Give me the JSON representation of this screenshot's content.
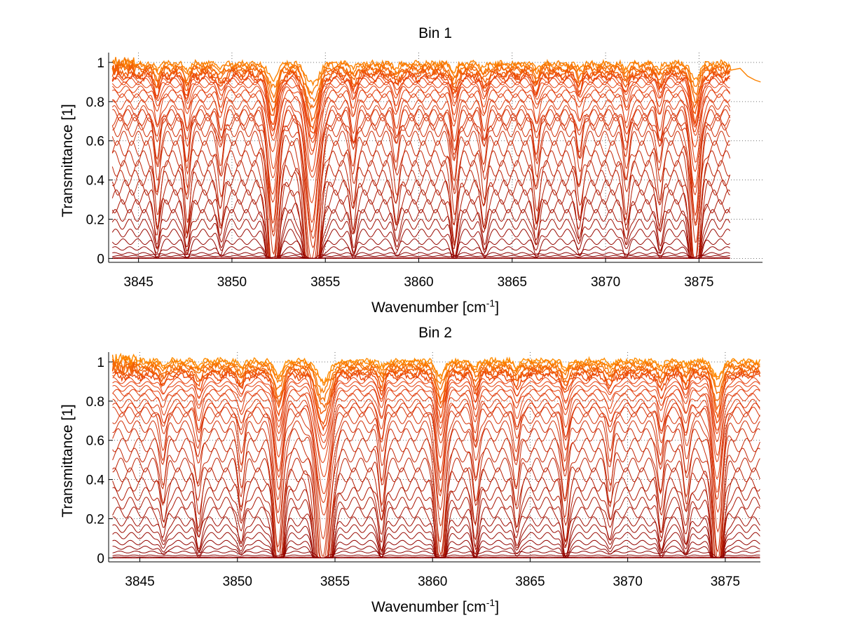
{
  "figure": {
    "background": "#ffffff",
    "grid_color": "#444444"
  },
  "chart_data": [
    {
      "type": "line",
      "title": "Bin 1",
      "xlabel": "Wavenumber [cm",
      "xlabel_sup": "-1",
      "xlabel_end": "]",
      "ylabel": "Transmittance [1]",
      "xlim": [
        3843.4,
        3878.4
      ],
      "ylim": [
        -0.02,
        1.05
      ],
      "xticks": [
        3845,
        3850,
        3855,
        3860,
        3865,
        3870,
        3875
      ],
      "yticks": [
        0,
        0.2,
        0.4,
        0.6,
        0.8,
        1
      ],
      "ytick_labels": [
        "0",
        "0.2",
        "0.4",
        "0.6",
        "0.8",
        "1"
      ],
      "grid": true,
      "data_x_range": [
        3843.6,
        3876.7
      ],
      "extra_tail": {
        "x": [
          3876.7,
          3877.2,
          3877.6,
          3878.0,
          3878.3
        ],
        "y": [
          0.96,
          0.97,
          0.93,
          0.91,
          0.9
        ]
      },
      "absorption_lines": [
        {
          "center": 3852.2,
          "depth": 0.72,
          "width": 0.35
        },
        {
          "center": 3854.3,
          "depth": 0.88,
          "width": 0.45
        },
        {
          "center": 3874.8,
          "depth": 0.66,
          "width": 0.32
        },
        {
          "center": 3846.0,
          "depth": 0.25,
          "width": 0.2
        },
        {
          "center": 3847.6,
          "depth": 0.28,
          "width": 0.2
        },
        {
          "center": 3849.4,
          "depth": 0.2,
          "width": 0.2
        },
        {
          "center": 3856.5,
          "depth": 0.22,
          "width": 0.2
        },
        {
          "center": 3858.8,
          "depth": 0.18,
          "width": 0.2
        },
        {
          "center": 3861.9,
          "depth": 0.3,
          "width": 0.22
        },
        {
          "center": 3863.5,
          "depth": 0.2,
          "width": 0.2
        },
        {
          "center": 3866.3,
          "depth": 0.22,
          "width": 0.2
        },
        {
          "center": 3868.6,
          "depth": 0.2,
          "width": 0.2
        },
        {
          "center": 3871.1,
          "depth": 0.22,
          "width": 0.2
        },
        {
          "center": 3872.9,
          "depth": 0.2,
          "width": 0.2
        }
      ],
      "ripple": {
        "amplitude": 0.09,
        "period": 0.78
      },
      "baselines": [
        1.0,
        0.99,
        0.98,
        0.97,
        0.96,
        0.95,
        0.94,
        0.93,
        0.92,
        0.9,
        0.88,
        0.86,
        0.84,
        0.81,
        0.78,
        0.76,
        0.74,
        0.72,
        0.69,
        0.65,
        0.6,
        0.55,
        0.5,
        0.45,
        0.4,
        0.35,
        0.3,
        0.25,
        0.2,
        0.15,
        0.1,
        0.06,
        0.03,
        0.015,
        0.005,
        0.0
      ],
      "colors": {
        "shallow": "#ff8c00",
        "mid": "#e8400a",
        "deep": "#8b0000"
      },
      "series_count": 36
    },
    {
      "type": "line",
      "title": "Bin 2",
      "xlabel": "Wavenumber [cm",
      "xlabel_sup": "-1",
      "xlabel_end": "]",
      "ylabel": "Transmittance [1]",
      "xlim": [
        3843.4,
        3876.8
      ],
      "ylim": [
        -0.02,
        1.05
      ],
      "xticks": [
        3845,
        3850,
        3855,
        3860,
        3865,
        3870,
        3875
      ],
      "yticks": [
        0,
        0.2,
        0.4,
        0.6,
        0.8,
        1
      ],
      "ytick_labels": [
        "0",
        "0.2",
        "0.4",
        "0.6",
        "0.8",
        "1"
      ],
      "grid": true,
      "data_x_range": [
        3843.6,
        3876.8
      ],
      "absorption_lines": [
        {
          "center": 3852.1,
          "depth": 0.6,
          "width": 0.3
        },
        {
          "center": 3854.4,
          "depth": 0.85,
          "width": 0.45
        },
        {
          "center": 3860.4,
          "depth": 0.6,
          "width": 0.3
        },
        {
          "center": 3874.6,
          "depth": 0.7,
          "width": 0.32
        },
        {
          "center": 3846.2,
          "depth": 0.2,
          "width": 0.2
        },
        {
          "center": 3848.0,
          "depth": 0.22,
          "width": 0.2
        },
        {
          "center": 3850.2,
          "depth": 0.22,
          "width": 0.2
        },
        {
          "center": 3857.4,
          "depth": 0.25,
          "width": 0.2
        },
        {
          "center": 3862.2,
          "depth": 0.25,
          "width": 0.2
        },
        {
          "center": 3864.3,
          "depth": 0.22,
          "width": 0.2
        },
        {
          "center": 3866.8,
          "depth": 0.3,
          "width": 0.22
        },
        {
          "center": 3869.1,
          "depth": 0.2,
          "width": 0.2
        },
        {
          "center": 3871.7,
          "depth": 0.25,
          "width": 0.2
        },
        {
          "center": 3873.0,
          "depth": 0.2,
          "width": 0.2
        }
      ],
      "ripple": {
        "amplitude": 0.08,
        "period": 0.82
      },
      "baselines": [
        1.01,
        1.0,
        0.99,
        0.98,
        0.97,
        0.96,
        0.95,
        0.94,
        0.92,
        0.9,
        0.88,
        0.86,
        0.84,
        0.81,
        0.79,
        0.77,
        0.74,
        0.7,
        0.66,
        0.61,
        0.56,
        0.51,
        0.46,
        0.41,
        0.36,
        0.31,
        0.26,
        0.21,
        0.17,
        0.13,
        0.09,
        0.06,
        0.035,
        0.015,
        0.005,
        0.0
      ],
      "colors": {
        "shallow": "#ff8c00",
        "mid": "#e8400a",
        "deep": "#8b0000"
      },
      "series_count": 36
    }
  ]
}
